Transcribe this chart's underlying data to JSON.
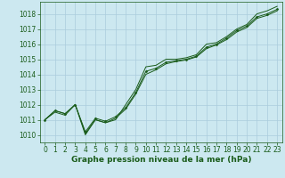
{
  "title": "Graphe pression niveau de la mer (hPa)",
  "x_ticks": [
    0,
    1,
    2,
    3,
    4,
    5,
    6,
    7,
    8,
    9,
    10,
    11,
    12,
    13,
    14,
    15,
    16,
    17,
    18,
    19,
    20,
    21,
    22,
    23
  ],
  "xlim": [
    -0.5,
    23.5
  ],
  "ylim": [
    1009.5,
    1018.8
  ],
  "yticks": [
    1010,
    1011,
    1012,
    1013,
    1014,
    1015,
    1016,
    1017,
    1018
  ],
  "bg_color": "#cce8f0",
  "grid_color": "#aaccdd",
  "line_color": "#1a5c1a",
  "marker_color": "#1a5c1a",
  "series": [
    [
      1011.0,
      1011.6,
      1011.4,
      1012.0,
      1010.0,
      1011.0,
      1010.8,
      1011.0,
      1012.0,
      1013.0,
      1014.5,
      1014.6,
      1015.0,
      1015.0,
      1015.1,
      1015.3,
      1016.0,
      1016.1,
      1016.5,
      1017.0,
      1017.3,
      1018.0,
      1018.2,
      1018.5
    ],
    [
      1011.0,
      1011.6,
      1011.4,
      1012.0,
      1010.2,
      1011.1,
      1010.9,
      1011.2,
      1011.8,
      1012.8,
      1014.2,
      1014.4,
      1014.8,
      1014.9,
      1015.0,
      1015.2,
      1015.8,
      1016.0,
      1016.4,
      1016.9,
      1017.2,
      1017.8,
      1018.0,
      1018.3
    ],
    [
      1011.0,
      1011.5,
      1011.3,
      1012.0,
      1010.1,
      1011.0,
      1010.8,
      1011.1,
      1011.7,
      1012.7,
      1014.0,
      1014.3,
      1014.7,
      1014.85,
      1014.95,
      1015.15,
      1015.7,
      1015.95,
      1016.3,
      1016.8,
      1017.1,
      1017.7,
      1017.9,
      1018.2
    ]
  ],
  "marker_series_index": 1,
  "fontsize_ticks": 5.5,
  "fontsize_label": 6.5
}
